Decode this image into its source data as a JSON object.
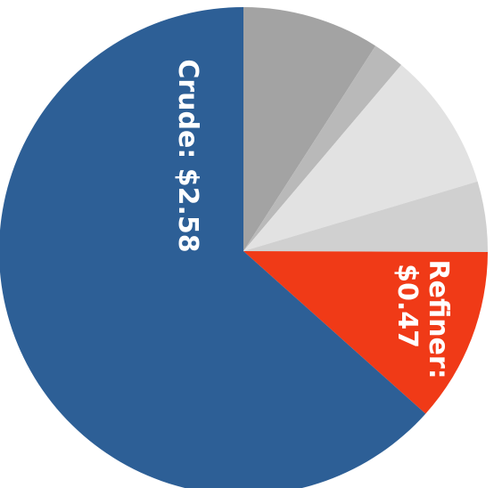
{
  "chart_data": {
    "type": "pie",
    "categories": [
      null,
      null,
      null,
      null,
      "Refiner:",
      "Crude:"
    ],
    "values": [
      0.37,
      0.085,
      0.375,
      0.19,
      0.47,
      2.58
    ],
    "value_labels": [
      null,
      null,
      null,
      null,
      "$0.47",
      "$2.58"
    ],
    "colors": [
      "#a3a3a3",
      "#b9b9b9",
      "#e2e2e2",
      "#d0d0d0",
      "#f03a17",
      "#2d5f96"
    ]
  }
}
